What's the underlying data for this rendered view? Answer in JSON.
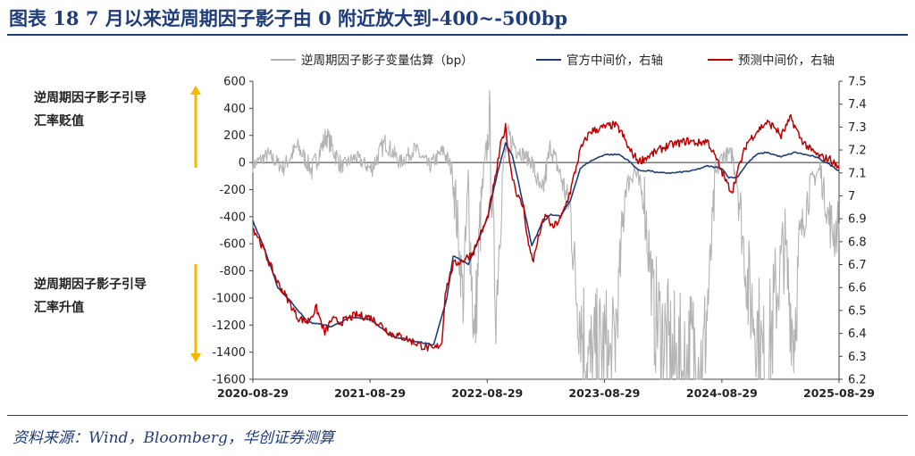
{
  "title": "图表 18   7 月以来逆周期因子影子由 0 附近放大到-400~-500bp",
  "source": "资料来源：Wind，Bloomberg，华创证券测算",
  "annotations": {
    "top_line1": "逆周期因子影子引导",
    "top_line2": "汇率贬值",
    "bottom_line1": "逆周期因子影子引导",
    "bottom_line2": "汇率升值"
  },
  "colors": {
    "title": "#1f3d7a",
    "gray_series": "#b3b3b3",
    "blue_series": "#1f3d7a",
    "red_series": "#c00000",
    "arrow": "#f5b700"
  },
  "chart_data": {
    "type": "line",
    "x_ticks": [
      "2020-08-29",
      "2021-08-29",
      "2022-08-29",
      "2023-08-29",
      "2024-08-29",
      "2025-08-29"
    ],
    "x_range": [
      "2020-08-29",
      "2025-08-29"
    ],
    "y_left": {
      "min": -1600,
      "max": 600,
      "ticks": [
        "600",
        "400",
        "200",
        "0",
        "-200",
        "-400",
        "-600",
        "-800",
        "-1000",
        "-1200",
        "-1400",
        "-1600"
      ]
    },
    "y_right": {
      "min": 6.2,
      "max": 7.5,
      "ticks": [
        "7.5",
        "7.4",
        "7.3",
        "7.2",
        "7.1",
        "7",
        "6.9",
        "6.8",
        "6.7",
        "6.6",
        "6.5",
        "6.4",
        "6.3",
        "6.2"
      ]
    },
    "series": [
      {
        "name": "逆周期因子影子变量估算（bp）",
        "axis": "left",
        "style": "gray",
        "points": [
          [
            "2020-08-29",
            -20
          ],
          [
            "2020-10-15",
            60
          ],
          [
            "2020-12-01",
            -40
          ],
          [
            "2021-01-15",
            120
          ],
          [
            "2021-03-01",
            -60
          ],
          [
            "2021-04-15",
            200
          ],
          [
            "2021-06-01",
            -30
          ],
          [
            "2021-07-15",
            40
          ],
          [
            "2021-09-01",
            -50
          ],
          [
            "2021-10-15",
            150
          ],
          [
            "2021-12-01",
            0
          ],
          [
            "2022-01-15",
            100
          ],
          [
            "2022-03-01",
            -30
          ],
          [
            "2022-04-15",
            90
          ],
          [
            "2022-05-15",
            -80
          ],
          [
            "2022-06-15",
            -1000
          ],
          [
            "2022-07-01",
            -200
          ],
          [
            "2022-07-20",
            -1350
          ],
          [
            "2022-08-10",
            -300
          ],
          [
            "2022-09-05",
            280
          ],
          [
            "2022-09-25",
            -1100
          ],
          [
            "2022-10-15",
            -100
          ],
          [
            "2022-11-01",
            200
          ],
          [
            "2022-12-01",
            100
          ],
          [
            "2023-01-15",
            0
          ],
          [
            "2023-02-15",
            -250
          ],
          [
            "2023-03-15",
            120
          ],
          [
            "2023-04-15",
            -100
          ],
          [
            "2023-05-15",
            -350
          ],
          [
            "2023-06-01",
            -900
          ],
          [
            "2023-06-20",
            -1200
          ],
          [
            "2023-07-15",
            -1550
          ],
          [
            "2023-08-29",
            -1400
          ],
          [
            "2023-09-20",
            -1580
          ],
          [
            "2023-10-10",
            -1050
          ],
          [
            "2023-11-01",
            -200
          ],
          [
            "2023-12-01",
            -50
          ],
          [
            "2024-01-01",
            -300
          ],
          [
            "2024-02-01",
            -1100
          ],
          [
            "2024-03-01",
            -1300
          ],
          [
            "2024-04-01",
            -1500
          ],
          [
            "2024-05-01",
            -1550
          ],
          [
            "2024-06-01",
            -1400
          ],
          [
            "2024-07-01",
            -1500
          ],
          [
            "2024-07-20",
            -900
          ],
          [
            "2024-08-10",
            -100
          ],
          [
            "2024-08-29",
            50
          ],
          [
            "2024-09-30",
            60
          ],
          [
            "2024-10-20",
            -200
          ],
          [
            "2024-11-15",
            -900
          ],
          [
            "2024-12-15",
            -1200
          ],
          [
            "2025-01-10",
            -1580
          ],
          [
            "2025-02-15",
            -1000
          ],
          [
            "2025-03-10",
            -600
          ],
          [
            "2025-04-10",
            -1300
          ],
          [
            "2025-05-01",
            -550
          ],
          [
            "2025-06-01",
            -150
          ],
          [
            "2025-07-01",
            -50
          ],
          [
            "2025-07-25",
            -400
          ],
          [
            "2025-08-15",
            -520
          ],
          [
            "2025-08-29",
            -450
          ]
        ]
      },
      {
        "name": "官方中间价，右轴",
        "axis": "right",
        "style": "blue",
        "points": [
          [
            "2020-08-29",
            6.89
          ],
          [
            "2020-10-01",
            6.78
          ],
          [
            "2020-11-15",
            6.6
          ],
          [
            "2020-12-31",
            6.53
          ],
          [
            "2021-02-15",
            6.45
          ],
          [
            "2021-05-01",
            6.43
          ],
          [
            "2021-07-01",
            6.47
          ],
          [
            "2021-09-01",
            6.46
          ],
          [
            "2021-11-01",
            6.39
          ],
          [
            "2022-01-01",
            6.37
          ],
          [
            "2022-03-15",
            6.35
          ],
          [
            "2022-04-25",
            6.55
          ],
          [
            "2022-05-15",
            6.74
          ],
          [
            "2022-07-01",
            6.7
          ],
          [
            "2022-08-29",
            6.9
          ],
          [
            "2022-09-30",
            7.1
          ],
          [
            "2022-10-25",
            7.23
          ],
          [
            "2022-11-15",
            7.18
          ],
          [
            "2022-12-15",
            6.99
          ],
          [
            "2023-01-15",
            6.78
          ],
          [
            "2023-02-15",
            6.88
          ],
          [
            "2023-03-15",
            6.92
          ],
          [
            "2023-04-15",
            6.91
          ],
          [
            "2023-05-15",
            6.98
          ],
          [
            "2023-06-15",
            7.12
          ],
          [
            "2023-07-15",
            7.15
          ],
          [
            "2023-08-29",
            7.18
          ],
          [
            "2023-09-15",
            7.18
          ],
          [
            "2023-10-15",
            7.18
          ],
          [
            "2023-11-15",
            7.15
          ],
          [
            "2023-12-15",
            7.11
          ],
          [
            "2024-01-15",
            7.11
          ],
          [
            "2024-02-15",
            7.1
          ],
          [
            "2024-04-01",
            7.1
          ],
          [
            "2024-06-01",
            7.11
          ],
          [
            "2024-07-15",
            7.13
          ],
          [
            "2024-08-29",
            7.12
          ],
          [
            "2024-09-20",
            7.08
          ],
          [
            "2024-10-15",
            7.08
          ],
          [
            "2024-11-15",
            7.14
          ],
          [
            "2024-12-15",
            7.18
          ],
          [
            "2025-01-15",
            7.19
          ],
          [
            "2025-03-01",
            7.17
          ],
          [
            "2025-04-15",
            7.19
          ],
          [
            "2025-05-15",
            7.18
          ],
          [
            "2025-06-15",
            7.17
          ],
          [
            "2025-07-15",
            7.15
          ],
          [
            "2025-08-29",
            7.11
          ]
        ]
      },
      {
        "name": "预测中间价，右轴",
        "axis": "right",
        "style": "red",
        "points": [
          [
            "2020-08-29",
            6.86
          ],
          [
            "2020-09-15",
            6.82
          ],
          [
            "2020-10-15",
            6.72
          ],
          [
            "2020-11-15",
            6.62
          ],
          [
            "2020-12-15",
            6.55
          ],
          [
            "2021-01-15",
            6.47
          ],
          [
            "2021-02-15",
            6.45
          ],
          [
            "2021-03-15",
            6.51
          ],
          [
            "2021-04-10",
            6.4
          ],
          [
            "2021-05-01",
            6.46
          ],
          [
            "2021-06-01",
            6.45
          ],
          [
            "2021-07-15",
            6.48
          ],
          [
            "2021-08-29",
            6.47
          ],
          [
            "2021-09-30",
            6.44
          ],
          [
            "2021-11-01",
            6.4
          ],
          [
            "2021-12-15",
            6.38
          ],
          [
            "2022-01-15",
            6.36
          ],
          [
            "2022-02-15",
            6.34
          ],
          [
            "2022-03-15",
            6.33
          ],
          [
            "2022-04-10",
            6.36
          ],
          [
            "2022-04-20",
            6.58
          ],
          [
            "2022-05-15",
            6.7
          ],
          [
            "2022-06-15",
            6.72
          ],
          [
            "2022-07-15",
            6.75
          ],
          [
            "2022-08-29",
            6.9
          ],
          [
            "2022-09-20",
            7.05
          ],
          [
            "2022-10-10",
            7.22
          ],
          [
            "2022-10-25",
            7.3
          ],
          [
            "2022-11-10",
            7.12
          ],
          [
            "2022-12-01",
            7.0
          ],
          [
            "2022-12-20",
            6.95
          ],
          [
            "2023-01-05",
            6.78
          ],
          [
            "2023-01-20",
            6.72
          ],
          [
            "2023-02-10",
            6.85
          ],
          [
            "2023-03-01",
            6.92
          ],
          [
            "2023-03-20",
            6.86
          ],
          [
            "2023-04-15",
            6.9
          ],
          [
            "2023-05-15",
            7.02
          ],
          [
            "2023-06-15",
            7.2
          ],
          [
            "2023-07-15",
            7.28
          ],
          [
            "2023-08-29",
            7.3
          ],
          [
            "2023-09-30",
            7.31
          ],
          [
            "2023-10-20",
            7.28
          ],
          [
            "2023-11-15",
            7.2
          ],
          [
            "2023-12-15",
            7.15
          ],
          [
            "2024-01-10",
            7.17
          ],
          [
            "2024-02-15",
            7.2
          ],
          [
            "2024-03-15",
            7.22
          ],
          [
            "2024-04-15",
            7.23
          ],
          [
            "2024-05-15",
            7.24
          ],
          [
            "2024-06-15",
            7.23
          ],
          [
            "2024-07-15",
            7.24
          ],
          [
            "2024-08-15",
            7.15
          ],
          [
            "2024-09-15",
            7.05
          ],
          [
            "2024-09-30",
            7.02
          ],
          [
            "2024-10-20",
            7.12
          ],
          [
            "2024-11-15",
            7.23
          ],
          [
            "2024-12-15",
            7.28
          ],
          [
            "2025-01-15",
            7.32
          ],
          [
            "2025-02-10",
            7.3
          ],
          [
            "2025-03-01",
            7.26
          ],
          [
            "2025-04-01",
            7.34
          ],
          [
            "2025-05-01",
            7.25
          ],
          [
            "2025-06-01",
            7.2
          ],
          [
            "2025-07-01",
            7.17
          ],
          [
            "2025-08-01",
            7.16
          ],
          [
            "2025-08-29",
            7.12
          ]
        ]
      }
    ]
  }
}
